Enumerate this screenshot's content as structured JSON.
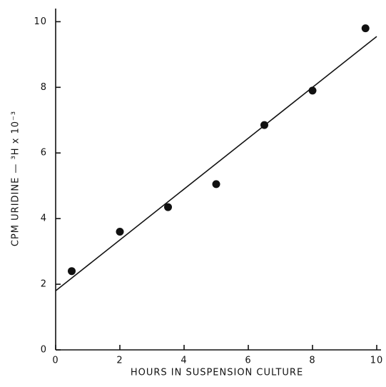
{
  "chart_data": {
    "type": "scatter",
    "x_label": "HOURS IN SUSPENSION CULTURE",
    "y_label": "CPM URIDINE — ³H x 10⁻³",
    "x": [
      0.5,
      2,
      3.5,
      5,
      6.5,
      8,
      9.65
    ],
    "values": [
      2.4,
      3.6,
      4.35,
      5.05,
      6.85,
      7.9,
      9.8
    ],
    "color": "#111111",
    "fit_line": {
      "x": [
        0,
        10
      ],
      "values": [
        1.8,
        9.55
      ]
    },
    "xlim": [
      0,
      10
    ],
    "xticks": [
      0,
      2,
      4,
      6,
      8,
      10
    ],
    "ylim": [
      0,
      10.4
    ],
    "yticks": [
      0,
      2,
      4,
      6,
      8,
      10
    ]
  }
}
